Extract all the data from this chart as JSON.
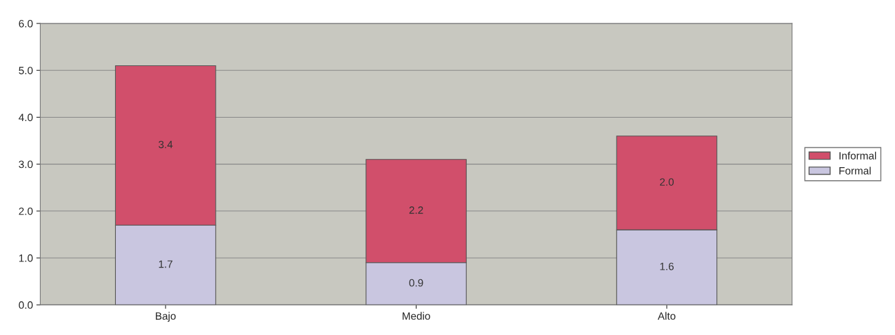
{
  "chart_data": {
    "type": "bar",
    "stacked": true,
    "categories": [
      "Bajo",
      "Medio",
      "Alto"
    ],
    "series": [
      {
        "name": "Formal",
        "color": "#c9c6e0",
        "values": [
          1.7,
          0.9,
          1.6
        ],
        "value_labels": [
          "1.7",
          "0.9",
          "1.6"
        ]
      },
      {
        "name": "Informal",
        "color": "#d14f6b",
        "values": [
          3.4,
          2.2,
          2.0
        ],
        "value_labels": [
          "3.4",
          "2.2",
          "2.0"
        ]
      }
    ],
    "ylim": [
      0,
      6
    ],
    "yticks": [
      {
        "value": 0,
        "label": "0.0"
      },
      {
        "value": 1,
        "label": "1.0"
      },
      {
        "value": 2,
        "label": "2.0"
      },
      {
        "value": 3,
        "label": "3.0"
      },
      {
        "value": 4,
        "label": "4.0"
      },
      {
        "value": 5,
        "label": "5.0"
      },
      {
        "value": 6,
        "label": "6.0"
      }
    ],
    "grid": "y",
    "legend": "right"
  }
}
